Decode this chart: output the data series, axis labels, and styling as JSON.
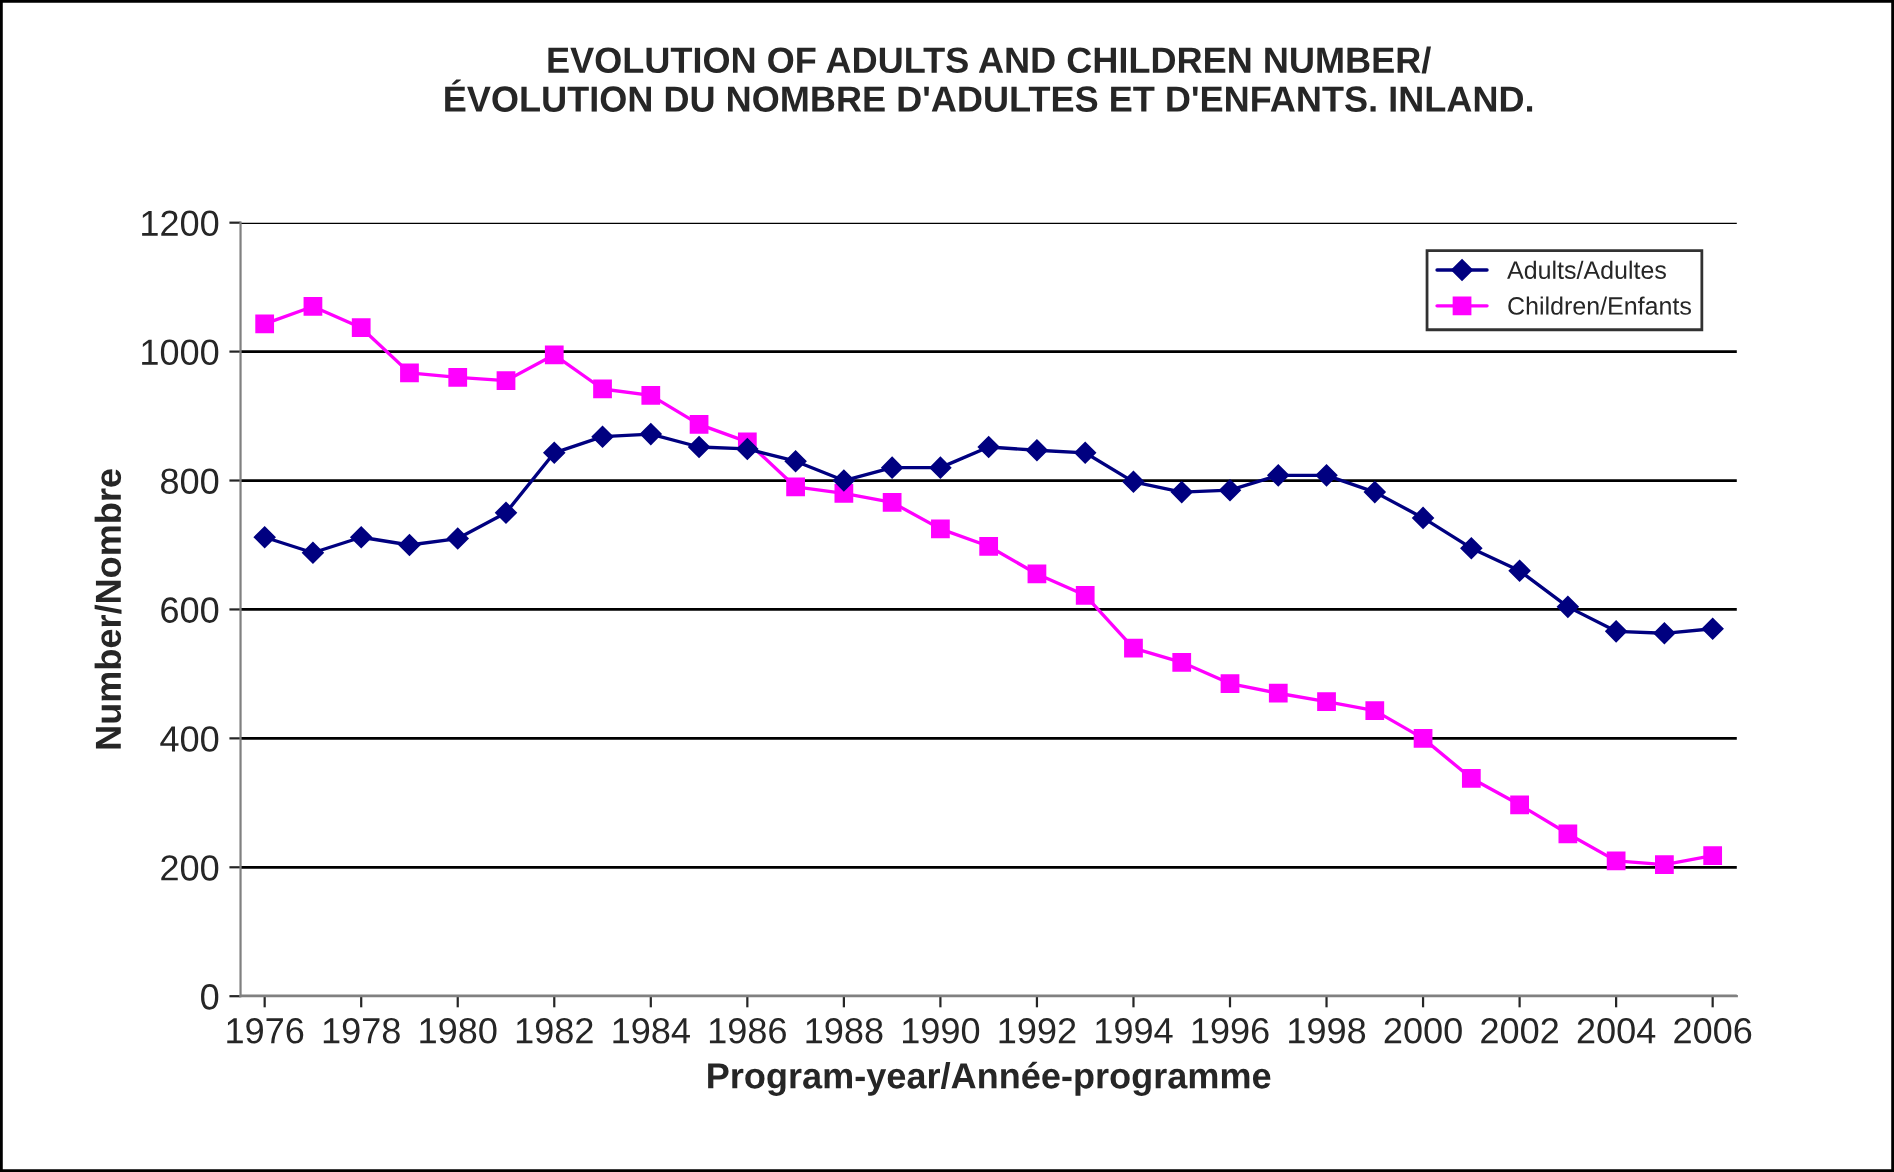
{
  "chart_data": {
    "type": "line",
    "title": "EVOLUTION OF ADULTS AND CHILDREN NUMBER/\nÉVOLUTION DU NOMBRE D'ADULTES ET D'ENFANTS. INLAND.",
    "xlabel": "Program-year/Année-programme",
    "ylabel": "Number/Nombre",
    "x": [
      1976,
      1977,
      1978,
      1979,
      1980,
      1981,
      1982,
      1983,
      1984,
      1985,
      1986,
      1987,
      1988,
      1989,
      1990,
      1991,
      1992,
      1993,
      1994,
      1995,
      1996,
      1997,
      1998,
      1999,
      2000,
      2001,
      2002,
      2003,
      2004,
      2005,
      2006
    ],
    "series": [
      {
        "name": "Adults/Adultes",
        "color": "#000080",
        "marker": "diamond",
        "values": [
          712,
          688,
          712,
          700,
          710,
          750,
          843,
          868,
          872,
          852,
          849,
          830,
          800,
          820,
          820,
          852,
          847,
          843,
          798,
          782,
          785,
          808,
          808,
          782,
          742,
          695,
          660,
          604,
          566,
          563,
          570
        ]
      },
      {
        "name": "Children/Enfants",
        "color": "#ff00ff",
        "marker": "square",
        "values": [
          1043,
          1070,
          1037,
          967,
          960,
          955,
          995,
          942,
          932,
          887,
          860,
          790,
          780,
          766,
          725,
          698,
          655,
          622,
          540,
          518,
          485,
          470,
          457,
          443,
          400,
          338,
          297,
          252,
          210,
          204,
          218
        ]
      }
    ],
    "xlim": [
      1975.5,
      2006.5
    ],
    "xticks": [
      1976,
      1978,
      1980,
      1982,
      1984,
      1986,
      1988,
      1990,
      1992,
      1994,
      1996,
      1998,
      2000,
      2002,
      2004,
      2006
    ],
    "ylim": [
      0,
      1200
    ],
    "yticks": [
      0,
      200,
      400,
      600,
      800,
      1000,
      1200
    ],
    "grid": "y",
    "legend": "top right",
    "line_style": "solid"
  }
}
